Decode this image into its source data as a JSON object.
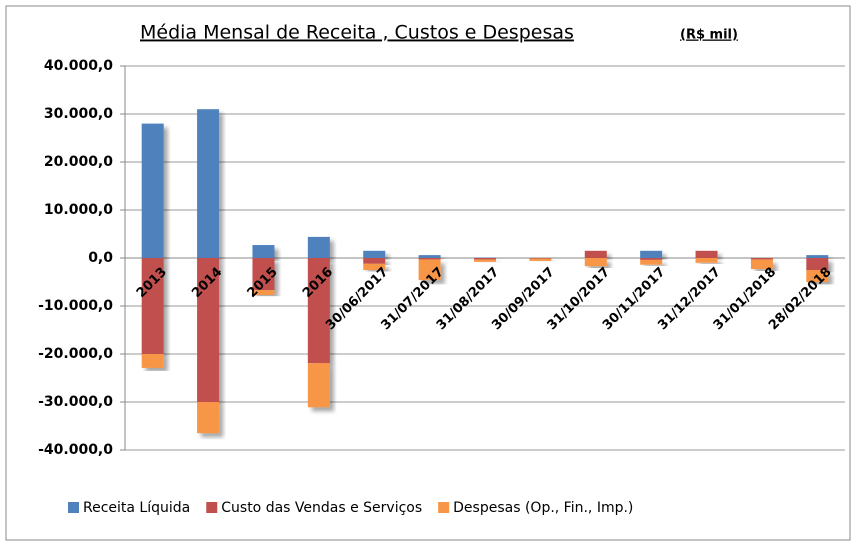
{
  "chart_data": {
    "type": "bar",
    "stacked": true,
    "title": "Média Mensal de Receita , Custos e Despesas",
    "subtitle": "(R$ mil)",
    "categories": [
      "2013",
      "2014",
      "2015",
      "2016",
      "30/06/2017",
      "31/07/2017",
      "31/08/2017",
      "30/09/2017",
      "31/10/2017",
      "30/11/2017",
      "31/12/2017",
      "31/01/2018",
      "28/02/2018"
    ],
    "series": [
      {
        "name": "Receita Líquida",
        "color": "#4f81bd",
        "values": [
          28000,
          31000,
          2700,
          4400,
          1500,
          600,
          100,
          0,
          0,
          1500,
          0,
          0,
          600
        ]
      },
      {
        "name": "Custo das Vendas e Serviços",
        "color": "#c0504d",
        "values": [
          -20000,
          -30000,
          -6700,
          -21900,
          -1200,
          -300,
          -300,
          -100,
          1500,
          -400,
          1500,
          -300,
          -2500
        ]
      },
      {
        "name": "Despesas (Op., Fin., Imp.)",
        "color": "#f79646",
        "values": [
          -2900,
          -6500,
          -1000,
          -9200,
          -1300,
          -4300,
          -500,
          -500,
          -1700,
          -1000,
          -1000,
          -2000,
          -2500
        ]
      }
    ],
    "ylim": [
      -40000,
      40000
    ],
    "yticks": [
      {
        "value": -40000,
        "label": "-40.000,0"
      },
      {
        "value": -30000,
        "label": "-30.000,0"
      },
      {
        "value": -20000,
        "label": "-20.000,0"
      },
      {
        "value": -10000,
        "label": "-10.000,0"
      },
      {
        "value": 0,
        "label": "0,0"
      },
      {
        "value": 10000,
        "label": "10.000,0"
      },
      {
        "value": 20000,
        "label": "20.000,0"
      },
      {
        "value": 30000,
        "label": "30.000,0"
      },
      {
        "value": 40000,
        "label": "40.000,0"
      }
    ],
    "grid": true,
    "legend": "bottom"
  }
}
